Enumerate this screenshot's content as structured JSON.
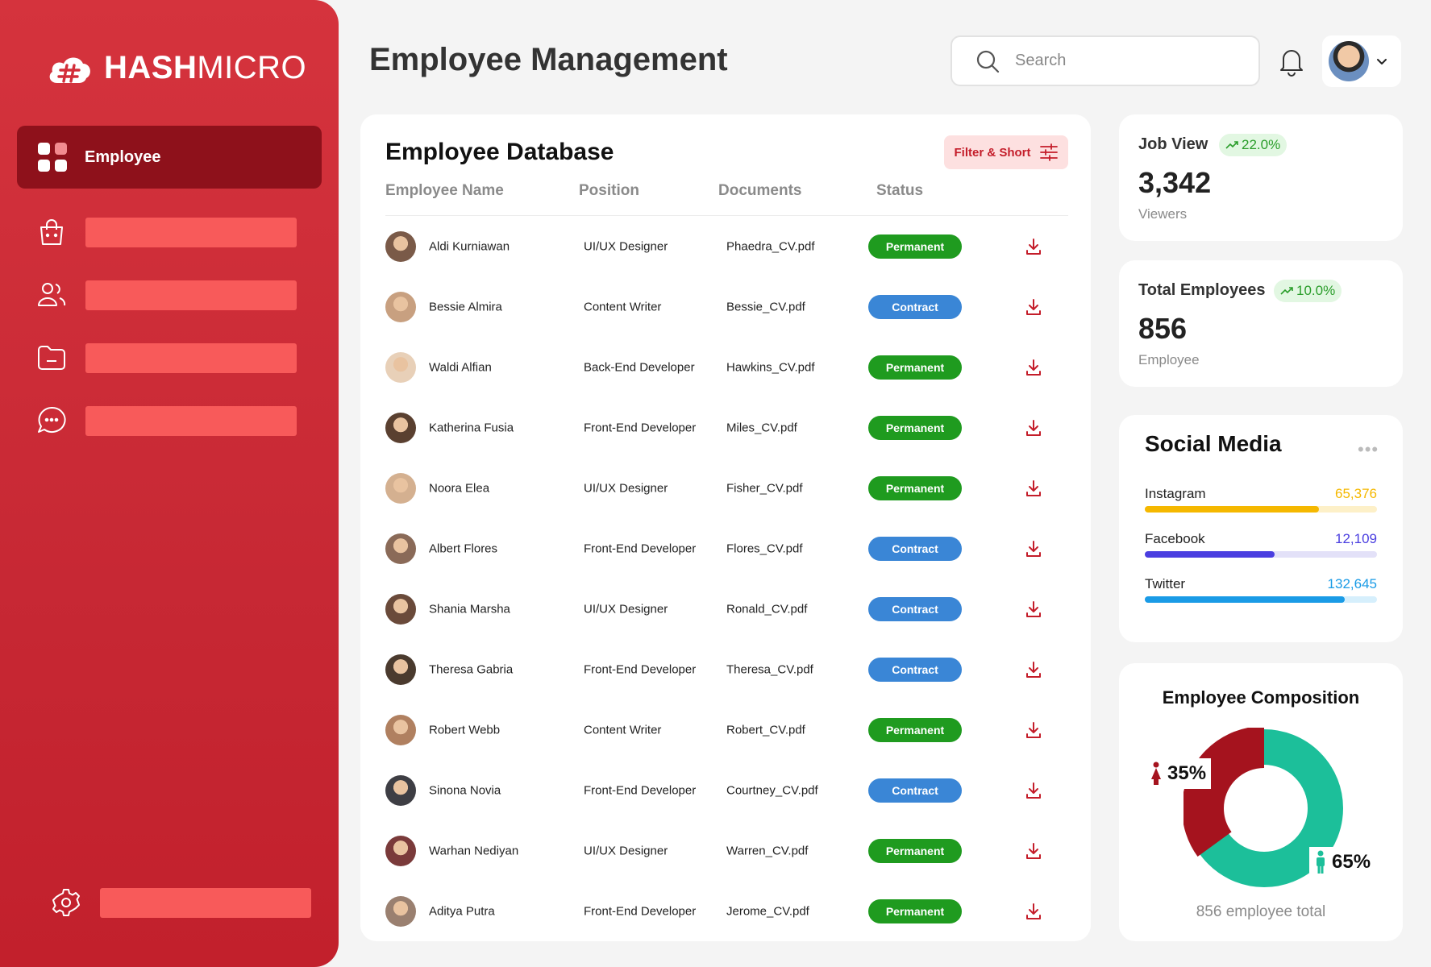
{
  "brand": {
    "name_bold": "HASH",
    "name_thin": "MICRO",
    "color": "#d32f3a"
  },
  "sidebar": {
    "active_item": {
      "label": "Employee",
      "icon": "grid-icon"
    },
    "items": [
      {
        "icon": "shopping-bag-icon"
      },
      {
        "icon": "users-icon"
      },
      {
        "icon": "folder-icon"
      },
      {
        "icon": "chat-icon"
      }
    ],
    "settings": {
      "icon": "gear-icon"
    }
  },
  "header": {
    "title": "Employee Management",
    "search_placeholder": "Search"
  },
  "database": {
    "title": "Employee Database",
    "filter_label": "Filter & Short",
    "columns": [
      "Employee Name",
      "Position",
      "Documents",
      "Status"
    ],
    "rows": [
      {
        "name": "Aldi Kurniawan",
        "position": "UI/UX Designer",
        "document": "Phaedra_CV.pdf",
        "status": "Permanent"
      },
      {
        "name": "Bessie Almira",
        "position": "Content Writer",
        "document": "Bessie_CV.pdf",
        "status": "Contract"
      },
      {
        "name": "Waldi Alfian",
        "position": "Back-End Developer",
        "document": "Hawkins_CV.pdf",
        "status": "Permanent"
      },
      {
        "name": "Katherina Fusia",
        "position": "Front-End Developer",
        "document": "Miles_CV.pdf",
        "status": "Permanent"
      },
      {
        "name": "Noora Elea",
        "position": "UI/UX Designer",
        "document": "Fisher_CV.pdf",
        "status": "Permanent"
      },
      {
        "name": "Albert Flores",
        "position": "Front-End Developer",
        "document": "Flores_CV.pdf",
        "status": "Contract"
      },
      {
        "name": "Shania Marsha",
        "position": "UI/UX Designer",
        "document": "Ronald_CV.pdf",
        "status": "Contract"
      },
      {
        "name": "Theresa Gabria",
        "position": "Front-End Developer",
        "document": "Theresa_CV.pdf",
        "status": "Contract"
      },
      {
        "name": "Robert Webb",
        "position": "Content Writer",
        "document": "Robert_CV.pdf",
        "status": "Permanent"
      },
      {
        "name": "Sinona Novia",
        "position": "Front-End Developer",
        "document": "Courtney_CV.pdf",
        "status": "Contract"
      },
      {
        "name": "Warhan Nediyan",
        "position": "UI/UX Designer",
        "document": "Warren_CV.pdf",
        "status": "Permanent"
      },
      {
        "name": "Aditya Putra",
        "position": "Front-End Developer",
        "document": "Jerome_CV.pdf",
        "status": "Permanent"
      }
    ]
  },
  "job_view": {
    "label": "Job View",
    "change": "22.0%",
    "value": "3,342",
    "unit": "Viewers"
  },
  "total_employees": {
    "label": "Total Employees",
    "change": "10.0%",
    "value": "856",
    "unit": "Employee"
  },
  "social_media": {
    "title": "Social Media",
    "items": [
      {
        "name": "Instagram",
        "count": "65,376",
        "fill_fraction": 0.75,
        "color": "#f5b800",
        "track": "#fdf0c8"
      },
      {
        "name": "Facebook",
        "count": "12,109",
        "fill_fraction": 0.56,
        "color": "#4a3ee0",
        "track": "#e3e1f8"
      },
      {
        "name": "Twitter",
        "count": "132,645",
        "fill_fraction": 0.86,
        "color": "#1a9be6",
        "track": "#d6effc"
      }
    ]
  },
  "composition": {
    "title": "Employee Composition",
    "female_pct": "35%",
    "male_pct": "65%",
    "female_fraction": 0.35,
    "female_color": "#a5131e",
    "male_color": "#1cbf9a",
    "total": "856 employee total"
  }
}
